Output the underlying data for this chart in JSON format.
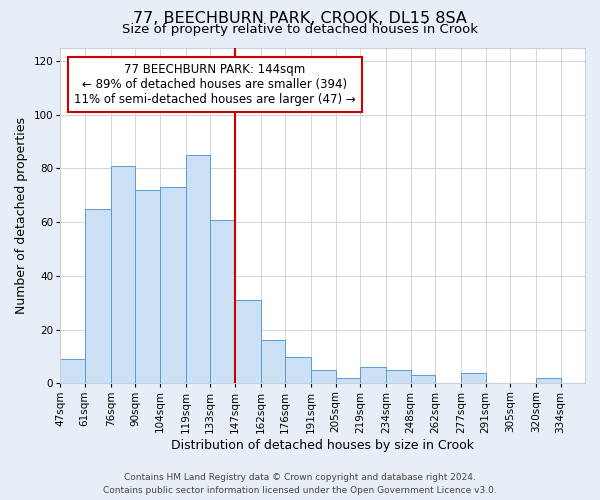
{
  "title": "77, BEECHBURN PARK, CROOK, DL15 8SA",
  "subtitle": "Size of property relative to detached houses in Crook",
  "xlabel": "Distribution of detached houses by size in Crook",
  "ylabel": "Number of detached properties",
  "bin_labels": [
    "47sqm",
    "61sqm",
    "76sqm",
    "90sqm",
    "104sqm",
    "119sqm",
    "133sqm",
    "147sqm",
    "162sqm",
    "176sqm",
    "191sqm",
    "205sqm",
    "219sqm",
    "234sqm",
    "248sqm",
    "262sqm",
    "277sqm",
    "291sqm",
    "305sqm",
    "320sqm",
    "334sqm"
  ],
  "bin_edges": [
    47,
    61,
    76,
    90,
    104,
    119,
    133,
    147,
    162,
    176,
    191,
    205,
    219,
    234,
    248,
    262,
    277,
    291,
    305,
    320,
    334,
    348
  ],
  "bar_values": [
    9,
    65,
    81,
    72,
    73,
    85,
    61,
    31,
    16,
    10,
    5,
    2,
    6,
    5,
    3,
    0,
    4,
    0,
    0,
    2,
    0
  ],
  "bar_fill": "#cce0f5",
  "bar_edge": "#5b9bd5",
  "vline_x": 147,
  "vline_color": "#cc0000",
  "annotation_line1": "77 BEECHBURN PARK: 144sqm",
  "annotation_line2": "← 89% of detached houses are smaller (394)",
  "annotation_line3": "11% of semi-detached houses are larger (47) →",
  "annotation_box_edge": "#cc0000",
  "annotation_box_fill": "white",
  "ylim": [
    0,
    125
  ],
  "yticks": [
    0,
    20,
    40,
    60,
    80,
    100,
    120
  ],
  "footer_line1": "Contains HM Land Registry data © Crown copyright and database right 2024.",
  "footer_line2": "Contains public sector information licensed under the Open Government Licence v3.0.",
  "background_color": "#e8eef7",
  "plot_bg_color": "white",
  "grid_color": "#c8d0dc",
  "title_fontsize": 11.5,
  "subtitle_fontsize": 9.5,
  "axis_label_fontsize": 9,
  "tick_fontsize": 7.5,
  "annotation_fontsize": 8.5,
  "footer_fontsize": 6.5
}
